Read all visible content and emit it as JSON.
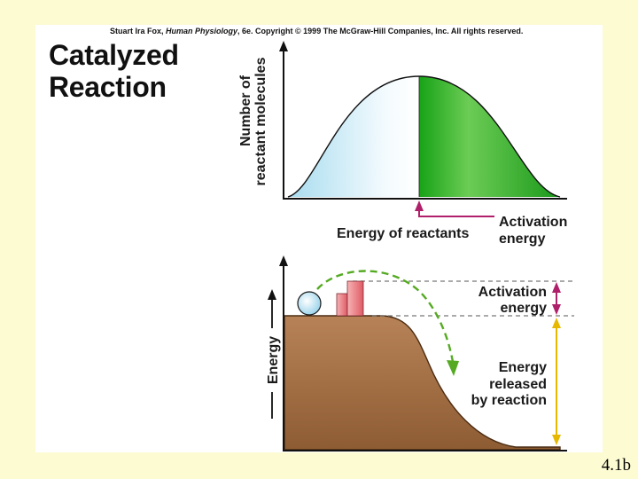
{
  "credit": {
    "author": "Stuart Ira Fox, ",
    "book": "Human Physiology",
    "rest": ", 6e. Copyright © 1999 The McGraw-Hill Companies, Inc.  All rights reserved."
  },
  "title": {
    "line1": "Catalyzed",
    "line2": "Reaction"
  },
  "top_graph": {
    "y_axis_line1": "Number of",
    "y_axis_line2": "reactant molecules",
    "x_axis_label": "Energy of reactants",
    "arrow_label_line1": "Activation",
    "arrow_label_line2": "energy"
  },
  "bottom_graph": {
    "y_axis_label": "Energy",
    "activation_line1": "Activation",
    "activation_line2": "energy",
    "released_line1": "Energy",
    "released_line2": "released",
    "released_line3": "by reaction"
  },
  "slide_number": "4.1b",
  "colors": {
    "background": "#fdfbd2",
    "green": "#22aa22",
    "light_blue": "#bfe6f5",
    "brown": "#9c6a3e",
    "magenta": "#b0206a",
    "yellow": "#e6b800",
    "dash_green": "#55aa22"
  }
}
